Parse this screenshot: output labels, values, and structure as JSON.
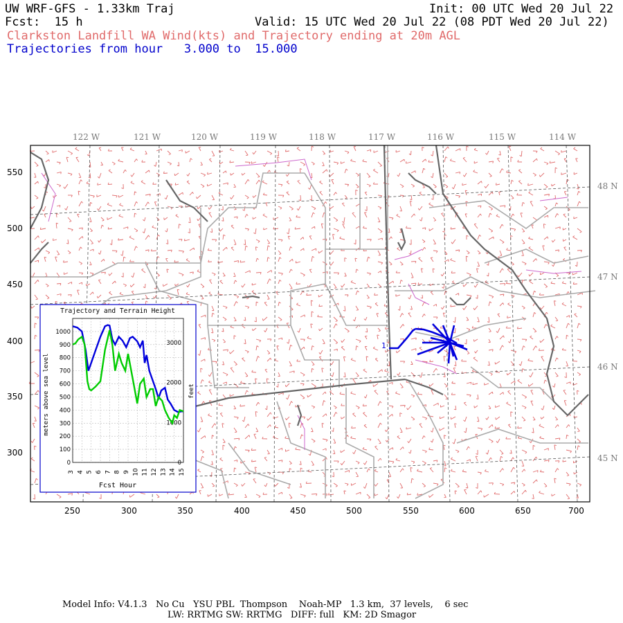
{
  "header": {
    "line1_left": "UW WRF-GFS - 1.33km Traj",
    "line1_right": "Init: 00 UTC Wed 20 Jul 22",
    "line2_left": "Fcst:  15 h",
    "line2_right": "Valid: 15 UTC Wed 20 Jul 22 (08 PDT Wed 20 Jul 22)",
    "line3": "Clarkston Landfill WA Wind(kts) and Trajectory ending at 20m AGL",
    "line4": "Trajectories from hour   3.000 to  15.000"
  },
  "map": {
    "lon_labels": [
      "122 W",
      "121 W",
      "120 W",
      "119 W",
      "118 W",
      "117 W",
      "116 W",
      "115 W",
      "114 W"
    ],
    "lat_labels": [
      "48 N",
      "47 N",
      "46 N",
      "45 N"
    ],
    "x_ticks": [
      "250",
      "300",
      "350",
      "400",
      "450",
      "500",
      "550",
      "600",
      "650",
      "700"
    ],
    "y_ticks": [
      "550",
      "500",
      "450",
      "400",
      "350",
      "300"
    ],
    "trajectory_start_label": "1",
    "colors": {
      "wind": "#e06a6a",
      "trajectory": "#0000dd",
      "border": "#666666",
      "county": "#aaaaaa",
      "river": "#cc66cc"
    }
  },
  "inset": {
    "title": "Trajectory and Terrain Height",
    "xlabel": "Fcst Hour",
    "ylabel_left": "meters above sea level",
    "ylabel_right": "feet",
    "x_ticks": [
      "3",
      "4",
      "5",
      "6",
      "7",
      "8",
      "9",
      "10",
      "11",
      "12",
      "13",
      "14",
      "15"
    ],
    "y_left_ticks": [
      "0",
      "100",
      "200",
      "300",
      "400",
      "500",
      "600",
      "700",
      "800",
      "900",
      "1000"
    ],
    "y_right_ticks": [
      "0",
      "1000",
      "2000",
      "3000"
    ]
  },
  "chart_data": {
    "type": "line",
    "title": "Trajectory and Terrain Height",
    "xlabel": "Fcst Hour",
    "ylabel": "meters above sea level",
    "xlim": [
      3,
      15
    ],
    "ylim": [
      0,
      1100
    ],
    "series": [
      {
        "color": "#0000dd",
        "x": [
          3.0,
          3.5,
          4.0,
          4.4,
          4.7,
          5.0,
          5.5,
          6.0,
          6.5,
          6.8,
          7.0,
          7.3,
          7.6,
          8.0,
          8.4,
          8.8,
          9.2,
          9.5,
          10.0,
          10.3,
          10.6,
          10.8,
          11.0,
          11.3,
          11.6,
          12.0,
          12.3,
          12.6,
          13.0,
          13.3,
          13.6,
          14.0,
          14.4,
          14.8,
          15.0
        ],
        "y": [
          1040,
          1030,
          1000,
          860,
          700,
          760,
          860,
          960,
          1040,
          1050,
          1045,
          940,
          900,
          960,
          930,
          880,
          950,
          960,
          925,
          880,
          930,
          760,
          820,
          700,
          640,
          560,
          490,
          550,
          570,
          480,
          450,
          400,
          385,
          390,
          390
        ]
      },
      {
        "color": "#00cc00",
        "x": [
          3.0,
          3.3,
          3.6,
          4.0,
          4.3,
          4.6,
          4.8,
          5.0,
          5.5,
          6.0,
          6.5,
          7.0,
          7.3,
          7.6,
          8.0,
          8.3,
          8.7,
          9.0,
          9.5,
          10.0,
          10.3,
          10.7,
          11.0,
          11.4,
          11.7,
          12.0,
          12.3,
          12.7,
          13.0,
          13.4,
          13.8,
          14.0,
          14.3,
          14.6,
          15.0
        ],
        "y": [
          900,
          910,
          940,
          960,
          900,
          620,
          560,
          550,
          580,
          620,
          860,
          1010,
          900,
          700,
          830,
          760,
          700,
          830,
          640,
          450,
          600,
          640,
          500,
          560,
          560,
          430,
          500,
          470,
          400,
          340,
          300,
          360,
          340,
          400,
          390
        ]
      }
    ]
  }
}
